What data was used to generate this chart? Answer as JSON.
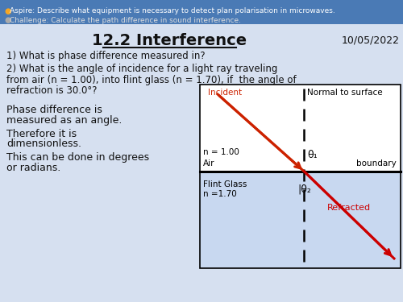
{
  "header_bg": "#4a7ab5",
  "aspire_bullet_color": "#f5a623",
  "challenge_bullet_color": "#aaaaaa",
  "aspire_line": "● Aspire: Describe what equipment is necessary to detect plan polarisation in microwaves.",
  "challenge_line": "● Challenge: Calculate the path difference in sound interference.",
  "main_bg": "#d6e0f0",
  "title": "12.2 Interference",
  "date": "10/05/2022",
  "q1": "1) What is phase difference measured in?",
  "q2_line1": "2) What is the angle of incidence for a light ray traveling",
  "q2_line2": "from air (n = 1.00), into flint glass (n = 1.70), if  the angle of",
  "q2_line3": "refraction is 30.0°?",
  "ans1": "Phase difference is",
  "ans2": "measured as an angle.",
  "ans3": "Therefore it is",
  "ans4": "dimensionless.",
  "ans5": "This can be done in degrees",
  "ans6": "or radians.",
  "diagram_bg_top": "#ffffff",
  "diagram_bg_bottom": "#c8d8f0",
  "incident_color": "#cc2200",
  "refracted_color": "#cc0000",
  "label_incident": "Incident",
  "label_normal": "Normal to surface",
  "label_n100": "n = 1.00",
  "label_air": "Air",
  "label_boundary": "boundary",
  "label_flint1": "Flint Glass",
  "label_flint2": "n =1.70",
  "label_refracted": "Refracted",
  "theta1_label": "θ₁",
  "theta2_label": "|θ₂"
}
